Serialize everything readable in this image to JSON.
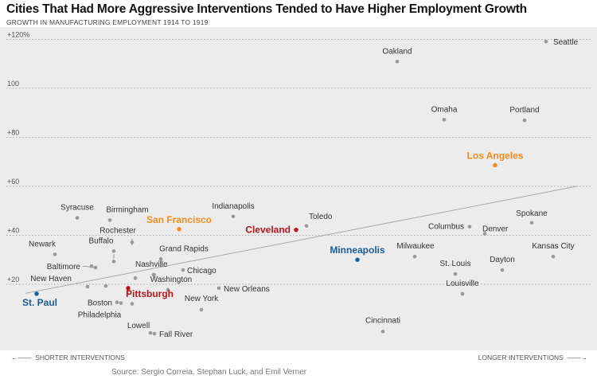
{
  "chart_data": {
    "type": "scatter",
    "title": "Cities That Had More Aggressive Interventions Tended to Have Higher Employment Growth",
    "subtitle": "GROWTH IN MANUFACTURING EMPLOYMENT 1914 TO 1919",
    "ylabel": "",
    "xlabel": "",
    "x_axis_left_label": "SHORTER INTERVENTIONS",
    "x_axis_right_label": "LONGER INTERVENTIONS",
    "x_direction_left_icon": "arrow-left",
    "x_direction_right_icon": "arrow-right",
    "source": "Source: Sergio Correia, Stephan Luck, and Emil Verner",
    "ylim": [
      -7,
      125
    ],
    "xlim": [
      0,
      750
    ],
    "y_ticks": [
      {
        "value": 20,
        "label": "+20"
      },
      {
        "value": 40,
        "label": "+40"
      },
      {
        "value": 60,
        "label": "+60"
      },
      {
        "value": 80,
        "label": "+80"
      },
      {
        "value": 100,
        "label": "100"
      },
      {
        "value": 120,
        "label": "+120%"
      }
    ],
    "grid": true,
    "background": "#ececec",
    "colors": {
      "default_point": "#999999",
      "default_label": "#333333",
      "gold": "#f28c1e",
      "red": "#b5141d",
      "blue": "#1b5d96",
      "trend": "#aaaaaa"
    },
    "trend_line": {
      "x": [
        32,
        725
      ],
      "y": [
        16.3,
        60
      ]
    },
    "points": [
      {
        "city": "Seattle",
        "x": 686,
        "y": 119.1,
        "color": "default"
      },
      {
        "city": "Oakland",
        "x": 499,
        "y": 110.9,
        "color": "default"
      },
      {
        "city": "Omaha",
        "x": 558,
        "y": 87.2,
        "color": "default"
      },
      {
        "city": "Portland",
        "x": 659,
        "y": 86.9,
        "color": "default"
      },
      {
        "city": "Los Angeles",
        "x": 622,
        "y": 68.6,
        "color": "gold"
      },
      {
        "city": "Spokane",
        "x": 668,
        "y": 45.1,
        "color": "default"
      },
      {
        "city": "Columbus",
        "x": 590,
        "y": 43.5,
        "color": "default"
      },
      {
        "city": "Denver",
        "x": 609,
        "y": 40.6,
        "color": "default"
      },
      {
        "city": "Toledo",
        "x": 385,
        "y": 43.8,
        "color": "default"
      },
      {
        "city": "Cleveland",
        "x": 372,
        "y": 42.2,
        "color": "red"
      },
      {
        "city": "Indianapolis",
        "x": 293,
        "y": 47.7,
        "color": "default"
      },
      {
        "city": "San Francisco",
        "x": 225,
        "y": 42.5,
        "color": "gold"
      },
      {
        "city": "Syracuse",
        "x": 97,
        "y": 47.1,
        "color": "default"
      },
      {
        "city": "Birmingham",
        "x": 138,
        "y": 46.2,
        "color": "default"
      },
      {
        "city": "Rochester",
        "x": 166,
        "y": 37.1,
        "color": "default"
      },
      {
        "city": "Grand Rapids",
        "x": 202,
        "y": 30.3,
        "color": "default"
      },
      {
        "city": "Buffalo",
        "x": 143,
        "y": 33.5,
        "color": "default"
      },
      {
        "city": "Newark",
        "x": 69,
        "y": 32.2,
        "color": "default"
      },
      {
        "city": "Minneapolis",
        "x": 449,
        "y": 30.0,
        "color": "blue"
      },
      {
        "city": "Milwaukee",
        "x": 521,
        "y": 31.3,
        "color": "default"
      },
      {
        "city": "Kansas City",
        "x": 695,
        "y": 31.3,
        "color": "default"
      },
      {
        "city": "Dayton",
        "x": 631,
        "y": 25.8,
        "color": "default"
      },
      {
        "city": "St. Louis",
        "x": 572,
        "y": 24.2,
        "color": "default"
      },
      {
        "city": "Louisville",
        "x": 581,
        "y": 16.1,
        "color": "default"
      },
      {
        "city": "Baltimore",
        "x": 115,
        "y": 27.4,
        "color": "default"
      },
      {
        "city": "Nashville",
        "x": 193,
        "y": 23.9,
        "color": "default"
      },
      {
        "city": "Chicago",
        "x": 230,
        "y": 25.8,
        "color": "default"
      },
      {
        "city": "New Haven",
        "x": 110,
        "y": 19.0,
        "color": "default"
      },
      {
        "city": "Washington",
        "x": 211,
        "y": 17.7,
        "color": "default"
      },
      {
        "city": "New Orleans",
        "x": 275,
        "y": 18.4,
        "color": "default"
      },
      {
        "city": "St. Paul",
        "x": 46,
        "y": 16.1,
        "color": "blue"
      },
      {
        "city": "Pittsburgh",
        "x": 161,
        "y": 18.4,
        "color": "red"
      },
      {
        "city": "Boston",
        "x": 147,
        "y": 12.6,
        "color": "default"
      },
      {
        "city": "Philadelphia",
        "x": 152,
        "y": 12.3,
        "color": "default"
      },
      {
        "city": "New York",
        "x": 253,
        "y": 9.6,
        "color": "default"
      },
      {
        "city": "Cincinnati",
        "x": 481,
        "y": 0.7,
        "color": "default"
      },
      {
        "city": "Lowell",
        "x": 189,
        "y": 0.1,
        "color": "default"
      },
      {
        "city": "Fall River",
        "x": 194,
        "y": -0.2,
        "color": "default"
      },
      {
        "city": "Unlabeled",
        "x": 120,
        "y": 26.8,
        "color": "default",
        "label": false
      },
      {
        "city": "Unlabeled",
        "x": 133,
        "y": 19.3,
        "color": "default",
        "label": false
      },
      {
        "city": "Unlabeled",
        "x": 143,
        "y": 29.3,
        "color": "default",
        "label": false
      },
      {
        "city": "Unlabeled",
        "x": 170,
        "y": 22.5,
        "color": "default",
        "label": false
      },
      {
        "city": "Unlabeled",
        "x": 166,
        "y": 12.0,
        "color": "default",
        "label": false
      }
    ]
  }
}
